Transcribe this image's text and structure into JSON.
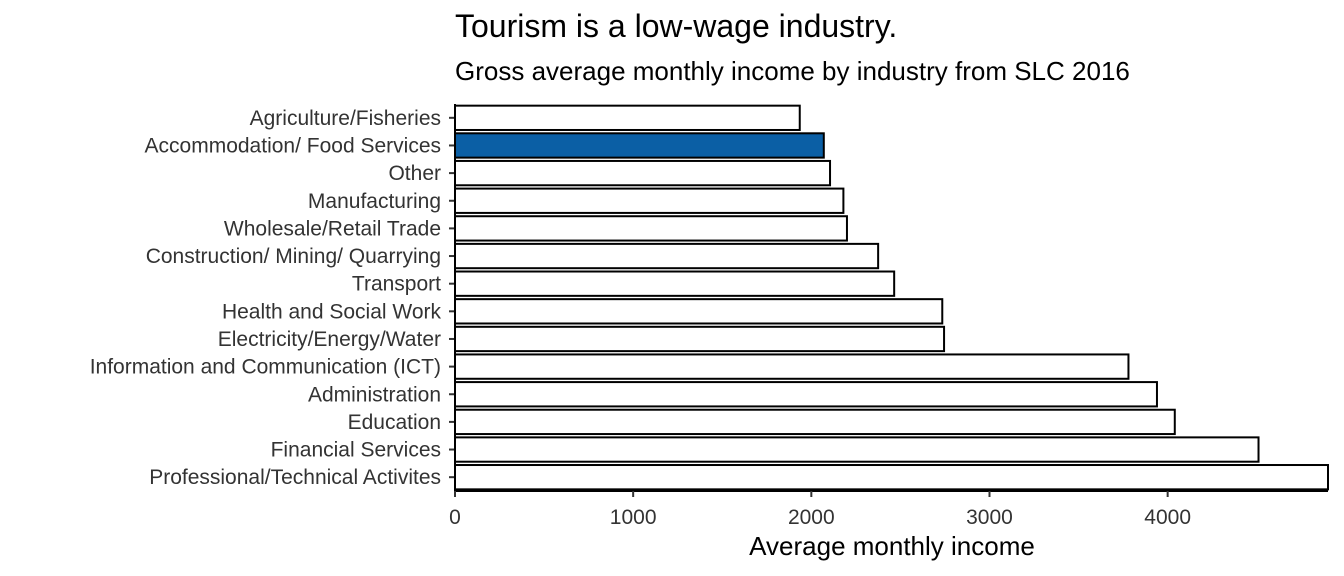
{
  "chart_data": {
    "type": "bar",
    "orientation": "horizontal",
    "title": "Tourism is a low-wage industry.",
    "subtitle": "Gross average monthly income by industry from SLC 2016",
    "xlabel": "Average monthly income",
    "ylabel": "",
    "xlim": [
      0,
      4900
    ],
    "xticks": [
      0,
      1000,
      2000,
      3000,
      4000
    ],
    "grid": false,
    "legend": "none",
    "categories": [
      "Agriculture/Fisheries",
      "Accommodation/ Food Services",
      "Other",
      "Manufacturing",
      "Wholesale/Retail Trade",
      "Construction/ Mining/ Quarrying",
      "Transport",
      "Health and Social Work",
      "Electricity/Energy/Water",
      "Information and Communication (ICT)",
      "Administration",
      "Education",
      "Financial Services",
      "Professional/Technical Activites"
    ],
    "values": [
      1935,
      2070,
      2105,
      2180,
      2200,
      2375,
      2465,
      2735,
      2745,
      3780,
      3940,
      4040,
      4510,
      4900
    ],
    "highlight": "Accommodation/ Food Services",
    "colors": {
      "highlight": "#0b5fa5",
      "default": "#ffffff",
      "outline": "#000000"
    }
  }
}
